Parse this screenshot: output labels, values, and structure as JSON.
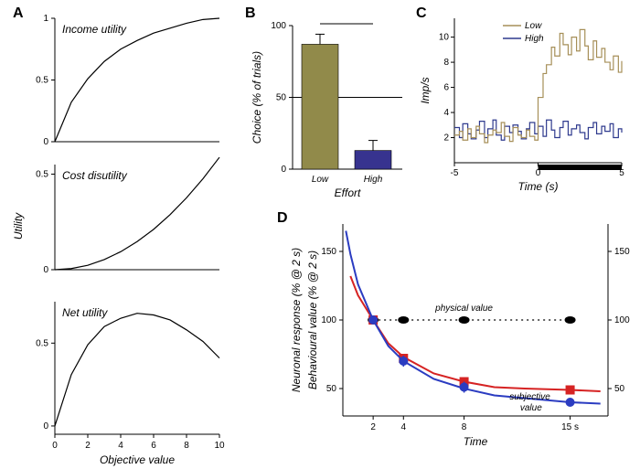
{
  "panelA": {
    "label": "A",
    "yAxisTitle": "Utility",
    "xAxisTitle": "Objective value",
    "xTicks": [
      0,
      2,
      4,
      6,
      8,
      10
    ],
    "subplots": [
      {
        "title": "Income utility",
        "yTicks": [
          0,
          0.5,
          1
        ],
        "ylim": [
          0,
          1
        ],
        "curve": [
          [
            0,
            0
          ],
          [
            1,
            0.32
          ],
          [
            2,
            0.51
          ],
          [
            3,
            0.65
          ],
          [
            4,
            0.75
          ],
          [
            5,
            0.82
          ],
          [
            6,
            0.88
          ],
          [
            7,
            0.92
          ],
          [
            8,
            0.96
          ],
          [
            9,
            0.99
          ],
          [
            10,
            1.0
          ]
        ]
      },
      {
        "title": "Cost disutility",
        "yTicks": [
          0,
          0.5
        ],
        "ylim": [
          0,
          0.55
        ],
        "curve": [
          [
            0,
            0
          ],
          [
            1,
            0.006
          ],
          [
            2,
            0.023
          ],
          [
            3,
            0.053
          ],
          [
            4,
            0.094
          ],
          [
            5,
            0.147
          ],
          [
            6,
            0.211
          ],
          [
            7,
            0.288
          ],
          [
            8,
            0.376
          ],
          [
            9,
            0.476
          ],
          [
            10,
            0.588
          ]
        ]
      },
      {
        "title": "Net utility",
        "yTicks": [
          0,
          0.5
        ],
        "ylim": [
          -0.05,
          0.75
        ],
        "curve": [
          [
            0,
            0
          ],
          [
            1,
            0.31
          ],
          [
            2,
            0.49
          ],
          [
            3,
            0.6
          ],
          [
            4,
            0.65
          ],
          [
            5,
            0.68
          ],
          [
            6,
            0.67
          ],
          [
            7,
            0.64
          ],
          [
            8,
            0.58
          ],
          [
            9,
            0.51
          ],
          [
            10,
            0.41
          ]
        ]
      }
    ]
  },
  "panelB": {
    "label": "B",
    "yAxisTitle": "Choice (% of trials)",
    "xAxisTitle": "Effort",
    "yTicks": [
      0,
      50,
      100
    ],
    "categories": [
      "Low",
      "High"
    ],
    "values": [
      87,
      13
    ],
    "errors": [
      7,
      7
    ],
    "barColors": [
      "#918a4a",
      "#37338f"
    ],
    "refLine": 50
  },
  "panelC": {
    "label": "C",
    "yAxisTitle": "Imp/s",
    "xAxisTitle": "Time (s)",
    "xTicks": [
      -5,
      0,
      5
    ],
    "yTicks": [
      2,
      4,
      6,
      8,
      10
    ],
    "legend": [
      {
        "label": "Low",
        "color": "#a68f58"
      },
      {
        "label": "High",
        "color": "#2f3a8e"
      }
    ],
    "stimBar": {
      "start": 0,
      "end": 5
    },
    "series": {
      "low": {
        "color": "#a68f58",
        "points": [
          [
            -5,
            2.2
          ],
          [
            -4.7,
            2.5
          ],
          [
            -4.5,
            1.8
          ],
          [
            -4.2,
            2.7
          ],
          [
            -4,
            2.0
          ],
          [
            -3.7,
            2.9
          ],
          [
            -3.5,
            2.3
          ],
          [
            -3.2,
            1.6
          ],
          [
            -3,
            2.2
          ],
          [
            -2.7,
            2.6
          ],
          [
            -2.5,
            2.4
          ],
          [
            -2.2,
            3.2
          ],
          [
            -2,
            2.1
          ],
          [
            -1.7,
            1.7
          ],
          [
            -1.5,
            2.8
          ],
          [
            -1.2,
            2.2
          ],
          [
            -1,
            2.0
          ],
          [
            -0.7,
            2.6
          ],
          [
            -0.5,
            2.1
          ],
          [
            -0.2,
            1.8
          ],
          [
            0,
            5.2
          ],
          [
            0.3,
            7.1
          ],
          [
            0.5,
            7.8
          ],
          [
            0.8,
            9.2
          ],
          [
            1,
            8.5
          ],
          [
            1.3,
            10.3
          ],
          [
            1.5,
            9.4
          ],
          [
            1.8,
            8.6
          ],
          [
            2,
            10.0
          ],
          [
            2.3,
            8.9
          ],
          [
            2.5,
            10.6
          ],
          [
            2.8,
            9.3
          ],
          [
            3,
            8.2
          ],
          [
            3.3,
            9.7
          ],
          [
            3.5,
            8.4
          ],
          [
            3.8,
            9.1
          ],
          [
            4,
            8.0
          ],
          [
            4.3,
            7.4
          ],
          [
            4.5,
            8.5
          ],
          [
            4.8,
            7.2
          ],
          [
            5,
            8.1
          ]
        ]
      },
      "high": {
        "color": "#2f3a8e",
        "points": [
          [
            -5,
            2.8
          ],
          [
            -4.7,
            2.0
          ],
          [
            -4.5,
            3.1
          ],
          [
            -4.2,
            2.3
          ],
          [
            -4,
            1.9
          ],
          [
            -3.7,
            2.6
          ],
          [
            -3.5,
            3.3
          ],
          [
            -3.2,
            2.0
          ],
          [
            -3,
            2.7
          ],
          [
            -2.7,
            3.4
          ],
          [
            -2.5,
            2.2
          ],
          [
            -2.2,
            1.8
          ],
          [
            -2,
            2.9
          ],
          [
            -1.7,
            2.4
          ],
          [
            -1.5,
            3.0
          ],
          [
            -1.2,
            2.5
          ],
          [
            -1,
            1.9
          ],
          [
            -0.7,
            2.7
          ],
          [
            -0.5,
            3.2
          ],
          [
            -0.2,
            2.3
          ],
          [
            0,
            2.9
          ],
          [
            0.3,
            2.1
          ],
          [
            0.5,
            3.4
          ],
          [
            0.8,
            2.6
          ],
          [
            1,
            2.0
          ],
          [
            1.3,
            2.8
          ],
          [
            1.5,
            3.3
          ],
          [
            1.8,
            2.2
          ],
          [
            2,
            2.7
          ],
          [
            2.3,
            3.0
          ],
          [
            2.5,
            2.4
          ],
          [
            2.8,
            1.9
          ],
          [
            3,
            2.8
          ],
          [
            3.3,
            3.2
          ],
          [
            3.5,
            2.3
          ],
          [
            3.8,
            2.9
          ],
          [
            4,
            2.5
          ],
          [
            4.3,
            3.1
          ],
          [
            4.5,
            2.0
          ],
          [
            4.8,
            2.7
          ],
          [
            5,
            2.4
          ]
        ]
      }
    }
  },
  "panelD": {
    "label": "D",
    "yAxisLeft": "Neuronal response (% @ 2 s)",
    "yAxisRight": "Behavioural value (% @ 2 s)",
    "xAxisTitle": "Time",
    "yTicks": [
      50,
      100,
      150
    ],
    "xTicks": [
      2,
      4,
      8,
      "15 s"
    ],
    "xValues": [
      2,
      4,
      8,
      15
    ],
    "physical": {
      "label": "physical value",
      "color": "#000000",
      "y": 100
    },
    "series": [
      {
        "label": "subjective value",
        "color": "#d62323",
        "marker": "square",
        "points": [
          [
            2,
            100
          ],
          [
            4,
            72
          ],
          [
            8,
            55
          ],
          [
            15,
            49
          ]
        ],
        "err": [
          3,
          3,
          3,
          3
        ],
        "curve": [
          [
            0.5,
            132
          ],
          [
            1,
            118
          ],
          [
            2,
            100
          ],
          [
            3,
            83
          ],
          [
            4,
            73
          ],
          [
            6,
            61
          ],
          [
            8,
            55
          ],
          [
            10,
            51
          ],
          [
            12,
            50
          ],
          [
            15,
            49
          ],
          [
            17,
            48
          ]
        ]
      },
      {
        "label": null,
        "color": "#2b3cc1",
        "marker": "circle",
        "points": [
          [
            2,
            100
          ],
          [
            4,
            70
          ],
          [
            8,
            51
          ],
          [
            15,
            40
          ]
        ],
        "err": [
          3,
          4,
          4,
          3
        ],
        "curve": [
          [
            0.2,
            165
          ],
          [
            0.5,
            148
          ],
          [
            1,
            126
          ],
          [
            2,
            100
          ],
          [
            3,
            81
          ],
          [
            4,
            70
          ],
          [
            6,
            57
          ],
          [
            8,
            50
          ],
          [
            10,
            45
          ],
          [
            12,
            43
          ],
          [
            15,
            40
          ],
          [
            17,
            39
          ]
        ]
      }
    ],
    "subjectiveLabel": "subjective\nvalue",
    "leftColor": "#d62323",
    "rightColor": "#2b3cc1"
  }
}
